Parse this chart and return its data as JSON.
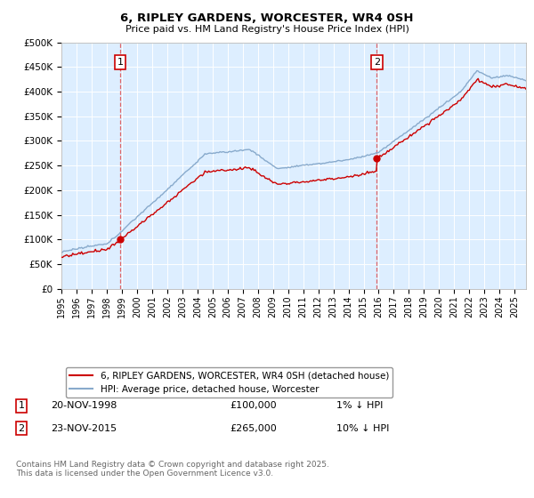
{
  "title_line1": "6, RIPLEY GARDENS, WORCESTER, WR4 0SH",
  "title_line2": "Price paid vs. HM Land Registry's House Price Index (HPI)",
  "ylim": [
    0,
    500000
  ],
  "yticks": [
    0,
    50000,
    100000,
    150000,
    200000,
    250000,
    300000,
    350000,
    400000,
    450000,
    500000
  ],
  "ytick_labels": [
    "£0",
    "£50K",
    "£100K",
    "£150K",
    "£200K",
    "£250K",
    "£300K",
    "£350K",
    "£400K",
    "£450K",
    "£500K"
  ],
  "xlim_start": 1995.0,
  "xlim_end": 2025.75,
  "sale1_date": 1998.88,
  "sale1_price": 100000,
  "sale1_label": "1",
  "sale2_date": 2015.88,
  "sale2_price": 265000,
  "sale2_label": "2",
  "legend_property": "6, RIPLEY GARDENS, WORCESTER, WR4 0SH (detached house)",
  "legend_hpi": "HPI: Average price, detached house, Worcester",
  "footer": "Contains HM Land Registry data © Crown copyright and database right 2025.\nThis data is licensed under the Open Government Licence v3.0.",
  "property_color": "#cc0000",
  "hpi_color": "#88aacc",
  "background_color": "#ffffff",
  "chart_bg_color": "#ddeeff",
  "grid_color": "#ffffff",
  "vline_color": "#dd4444"
}
